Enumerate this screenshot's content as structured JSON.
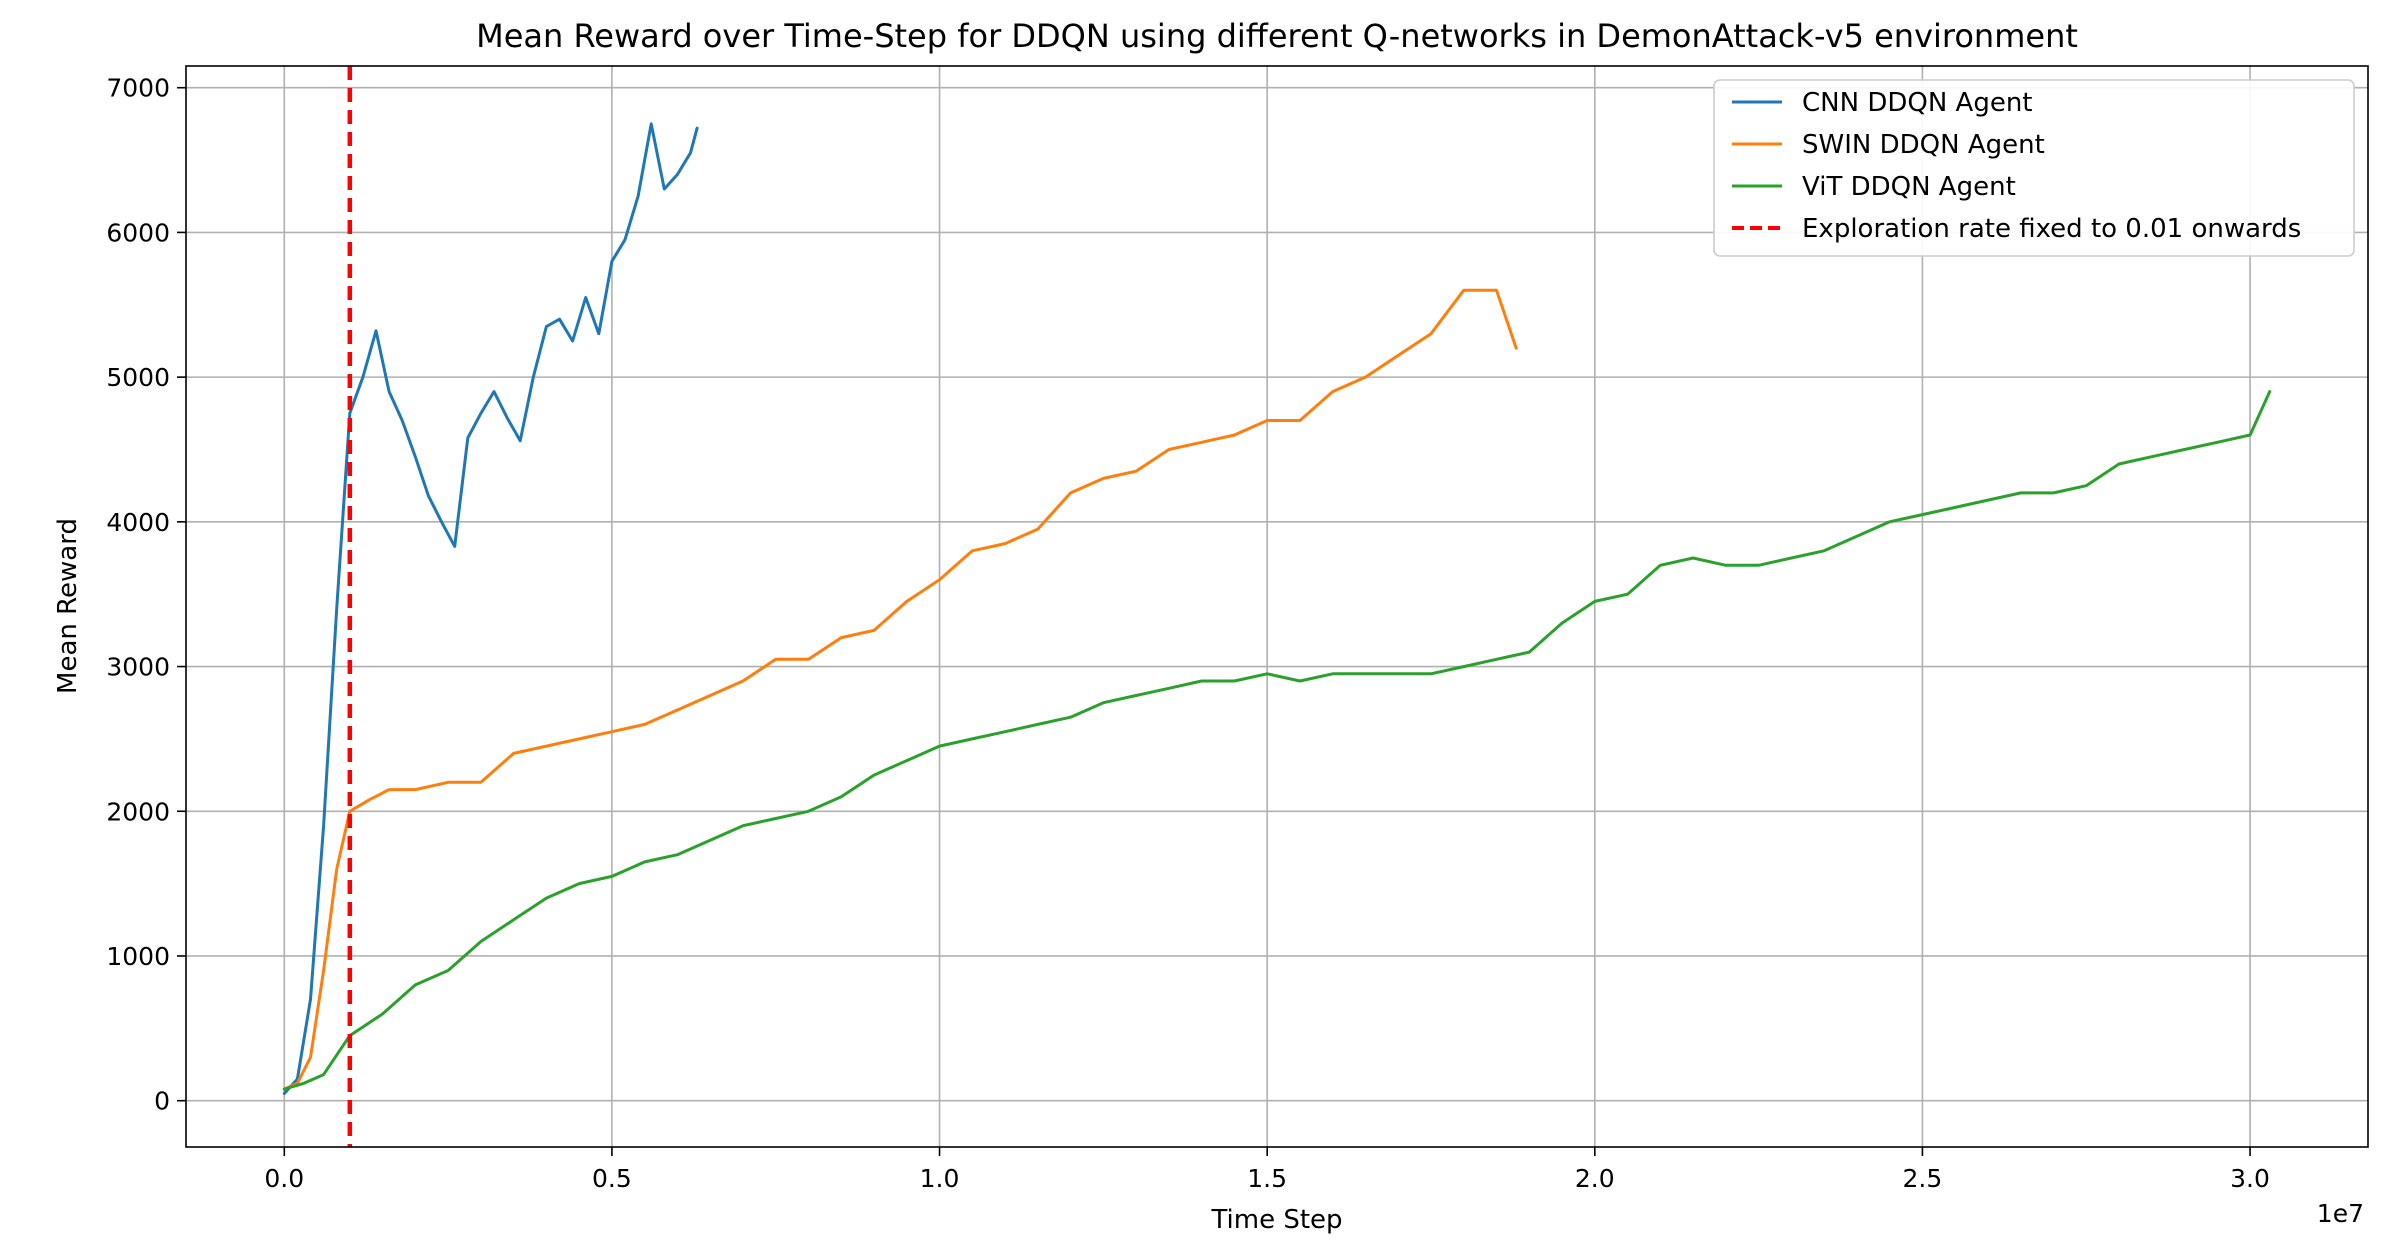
{
  "chart_data": {
    "type": "line",
    "title": "Mean Reward over Time-Step for DDQN using different Q-networks in DemonAttack-v5 environment",
    "xlabel": "Time Step",
    "ylabel": "Mean Reward",
    "x_scale_label": "1e7",
    "x_scale": 10000000,
    "xlim": [
      -0.15,
      3.18
    ],
    "ylim": [
      -320,
      7150
    ],
    "x_ticks": [
      0.0,
      0.5,
      1.0,
      1.5,
      2.0,
      2.5,
      3.0
    ],
    "x_tick_labels": [
      "0.0",
      "0.5",
      "1.0",
      "1.5",
      "2.0",
      "2.5",
      "3.0"
    ],
    "y_ticks": [
      0,
      1000,
      2000,
      3000,
      4000,
      5000,
      6000,
      7000
    ],
    "y_tick_labels": [
      "0",
      "1000",
      "2000",
      "3000",
      "4000",
      "5000",
      "6000",
      "7000"
    ],
    "grid": true,
    "legend_position": "top-right",
    "vline": {
      "x": 0.1,
      "color": "#ff0000",
      "label": "Exploration rate fixed to 0.01 onwards"
    },
    "series": [
      {
        "name": "CNN DDQN Agent",
        "color": "#1f77b4",
        "x": [
          0.0,
          0.02,
          0.04,
          0.06,
          0.08,
          0.1,
          0.12,
          0.14,
          0.16,
          0.18,
          0.2,
          0.22,
          0.24,
          0.26,
          0.28,
          0.3,
          0.32,
          0.34,
          0.36,
          0.38,
          0.4,
          0.42,
          0.44,
          0.46,
          0.48,
          0.5,
          0.52,
          0.54,
          0.56,
          0.58,
          0.6,
          0.62,
          0.63
        ],
        "y": [
          50,
          150,
          700,
          1900,
          3400,
          4750,
          5000,
          5320,
          4900,
          4700,
          4450,
          4180,
          4000,
          3830,
          4580,
          4750,
          4900,
          4720,
          4560,
          5000,
          5350,
          5400,
          5250,
          5550,
          5300,
          5800,
          5950,
          6250,
          6750,
          6300,
          6400,
          6550,
          6720
        ]
      },
      {
        "name": "SWIN DDQN Agent",
        "color": "#ff7f0e",
        "x": [
          0.0,
          0.02,
          0.04,
          0.06,
          0.08,
          0.1,
          0.13,
          0.16,
          0.2,
          0.25,
          0.3,
          0.35,
          0.4,
          0.45,
          0.5,
          0.55,
          0.6,
          0.65,
          0.7,
          0.75,
          0.8,
          0.85,
          0.9,
          0.95,
          1.0,
          1.05,
          1.1,
          1.15,
          1.2,
          1.25,
          1.3,
          1.35,
          1.4,
          1.45,
          1.5,
          1.55,
          1.6,
          1.65,
          1.7,
          1.75,
          1.8,
          1.85,
          1.88
        ],
        "y": [
          80,
          120,
          300,
          900,
          1600,
          2000,
          2080,
          2150,
          2150,
          2200,
          2200,
          2400,
          2450,
          2500,
          2550,
          2600,
          2700,
          2800,
          2900,
          3050,
          3050,
          3200,
          3250,
          3450,
          3600,
          3800,
          3850,
          3950,
          4200,
          4300,
          4350,
          4500,
          4550,
          4600,
          4700,
          4700,
          4900,
          5000,
          5150,
          5300,
          5600,
          5600,
          5200
        ]
      },
      {
        "name": "ViT DDQN Agent",
        "color": "#2ca02c",
        "x": [
          0.0,
          0.03,
          0.06,
          0.1,
          0.15,
          0.2,
          0.25,
          0.3,
          0.35,
          0.4,
          0.45,
          0.5,
          0.55,
          0.6,
          0.65,
          0.7,
          0.75,
          0.8,
          0.85,
          0.9,
          0.95,
          1.0,
          1.05,
          1.1,
          1.15,
          1.2,
          1.25,
          1.3,
          1.35,
          1.4,
          1.45,
          1.5,
          1.55,
          1.6,
          1.65,
          1.7,
          1.75,
          1.8,
          1.85,
          1.9,
          1.95,
          2.0,
          2.05,
          2.1,
          2.15,
          2.2,
          2.25,
          2.3,
          2.35,
          2.4,
          2.45,
          2.5,
          2.55,
          2.6,
          2.65,
          2.7,
          2.75,
          2.8,
          2.85,
          2.9,
          2.95,
          3.0,
          3.03
        ],
        "y": [
          80,
          120,
          180,
          450,
          600,
          800,
          900,
          1100,
          1250,
          1400,
          1500,
          1550,
          1650,
          1700,
          1800,
          1900,
          1950,
          2000,
          2100,
          2250,
          2350,
          2450,
          2500,
          2550,
          2600,
          2650,
          2750,
          2800,
          2850,
          2900,
          2900,
          2950,
          2900,
          2950,
          2950,
          2950,
          2950,
          3000,
          3050,
          3100,
          3300,
          3450,
          3500,
          3700,
          3750,
          3700,
          3700,
          3750,
          3800,
          3900,
          4000,
          4050,
          4100,
          4150,
          4200,
          4200,
          4250,
          4400,
          4450,
          4500,
          4550,
          4600,
          4900
        ]
      }
    ]
  }
}
